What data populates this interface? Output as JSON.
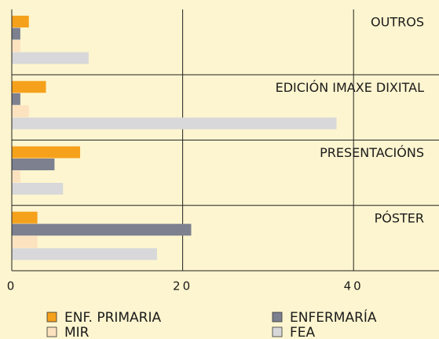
{
  "chart_data": {
    "type": "bar",
    "orientation": "horizontal",
    "categories": [
      "OUTROS",
      "EDICIÓN IMAXE DIXITAL",
      "PRESENTACIÓNS",
      "PÓSTER"
    ],
    "series": [
      {
        "name": "ENF. PRIMARIA",
        "color": "#f5a11c",
        "values": [
          2,
          4,
          8,
          3
        ]
      },
      {
        "name": "ENFERMARÍA",
        "color": "#7d808f",
        "values": [
          1,
          1,
          5,
          21
        ]
      },
      {
        "name": "MIR",
        "color": "#fde2bf",
        "values": [
          1,
          2,
          1,
          3
        ]
      },
      {
        "name": "FEA",
        "color": "#d8d8da",
        "values": [
          9,
          38,
          6,
          17
        ]
      }
    ],
    "xlim": [
      0,
      50
    ],
    "xticks": [
      0,
      20,
      40
    ],
    "grid": true
  }
}
